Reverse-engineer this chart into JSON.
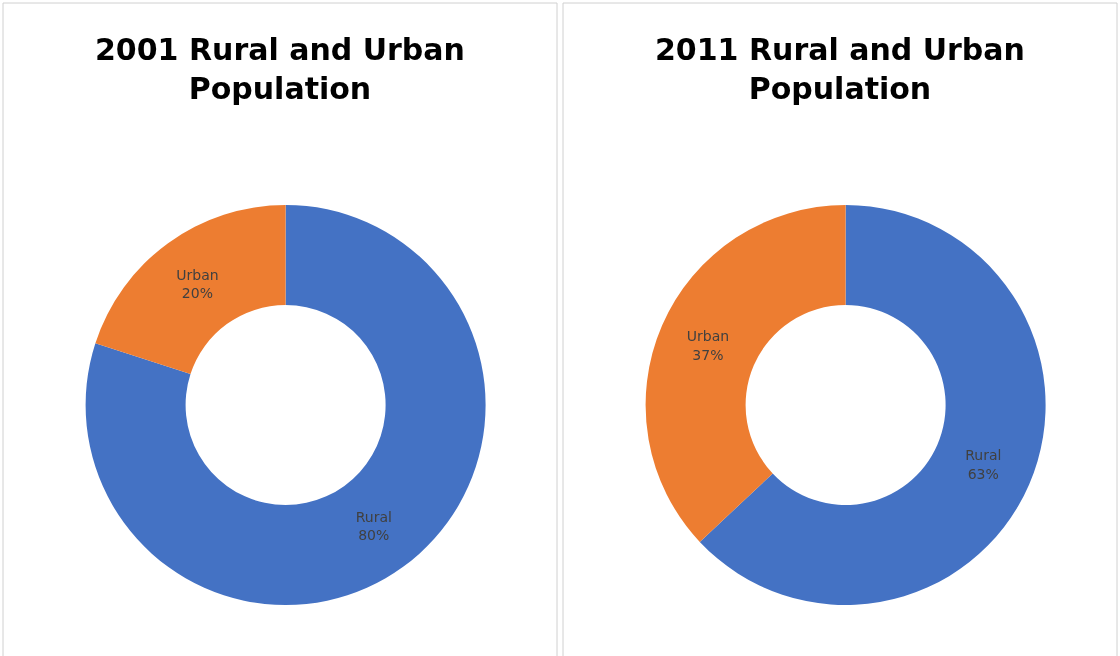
{
  "chart_data": [
    {
      "type": "donut",
      "title": "2001 Rural and Urban Population",
      "categories": [
        "Rural",
        "Urban"
      ],
      "values": [
        80,
        20
      ],
      "colors": [
        "#4472c4",
        "#ed7d31"
      ],
      "value_labels": [
        "80%",
        "20%"
      ],
      "legend": false
    },
    {
      "type": "donut",
      "title": "2011 Rural and Urban Population",
      "categories": [
        "Rural",
        "Urban"
      ],
      "values": [
        63,
        37
      ],
      "colors": [
        "#4472c4",
        "#ed7d31"
      ],
      "value_labels": [
        "63%",
        "37%"
      ],
      "legend": false
    }
  ]
}
